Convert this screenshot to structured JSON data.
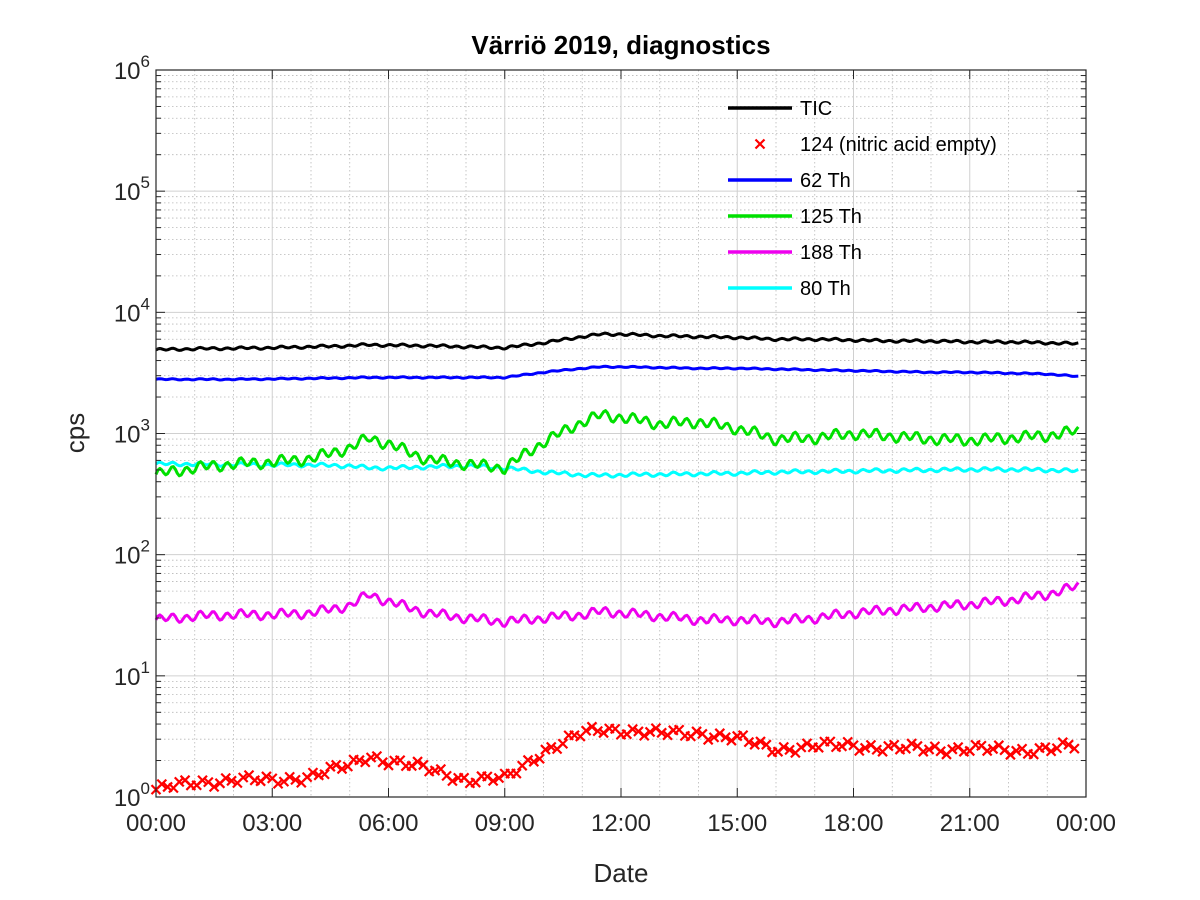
{
  "chart_data": {
    "type": "line",
    "title": "Värriö 2019, diagnostics",
    "xlabel": "Date",
    "ylabel": "cps",
    "yscale": "log",
    "ylim": [
      1,
      1000000
    ],
    "xlim": [
      "00:00",
      "00:00 (next day)"
    ],
    "x_tick_labels": [
      "00:00",
      "03:00",
      "06:00",
      "09:00",
      "12:00",
      "15:00",
      "18:00",
      "21:00",
      "00:00"
    ],
    "y_tick_labels": [
      {
        "base": "10",
        "exp": "0"
      },
      {
        "base": "10",
        "exp": "1"
      },
      {
        "base": "10",
        "exp": "2"
      },
      {
        "base": "10",
        "exp": "3"
      },
      {
        "base": "10",
        "exp": "4"
      },
      {
        "base": "10",
        "exp": "5"
      },
      {
        "base": "10",
        "exp": "6"
      }
    ],
    "grid": true,
    "minor_grid": true,
    "legend_position": "top-right",
    "x_hours": [
      0,
      1,
      2,
      3,
      4,
      5,
      5.5,
      6,
      7,
      8,
      9,
      10,
      11,
      11.5,
      12,
      13,
      14,
      15,
      16,
      17,
      18,
      19,
      20,
      21,
      22,
      23,
      23.8
    ],
    "series": [
      {
        "name": "TIC",
        "color": "#000000",
        "marker": "line",
        "values": [
          4900,
          5000,
          5050,
          5100,
          5200,
          5300,
          5400,
          5350,
          5300,
          5200,
          5100,
          5600,
          6300,
          6600,
          6600,
          6400,
          6300,
          6200,
          6000,
          6000,
          5900,
          5800,
          5800,
          5700,
          5700,
          5600,
          5500
        ]
      },
      {
        "name": "124 (nitric acid empty)",
        "color": "#ff0000",
        "marker": "x",
        "values": [
          1.15,
          1.3,
          1.4,
          1.35,
          1.5,
          1.8,
          2.2,
          2.0,
          1.7,
          1.4,
          1.4,
          2.4,
          3.3,
          3.6,
          3.6,
          3.3,
          3.4,
          3.0,
          2.5,
          2.6,
          2.7,
          2.5,
          2.5,
          2.5,
          2.4,
          2.5,
          2.6
        ]
      },
      {
        "name": "62 Th",
        "color": "#0000ff",
        "marker": "line",
        "values": [
          2800,
          2800,
          2800,
          2820,
          2850,
          2880,
          2900,
          2900,
          2900,
          2900,
          2900,
          3200,
          3450,
          3550,
          3550,
          3500,
          3450,
          3450,
          3400,
          3350,
          3300,
          3250,
          3200,
          3200,
          3150,
          3100,
          2950
        ]
      },
      {
        "name": "125 Th",
        "color": "#00e000",
        "marker": "line",
        "values": [
          460,
          520,
          560,
          580,
          620,
          760,
          920,
          820,
          610,
          560,
          520,
          850,
          1250,
          1420,
          1360,
          1200,
          1250,
          1100,
          900,
          920,
          1000,
          950,
          900,
          880,
          920,
          960,
          1050
        ]
      },
      {
        "name": "188 Th",
        "color": "#ee00ee",
        "marker": "line",
        "values": [
          29,
          31,
          32,
          32,
          33,
          38,
          47,
          41,
          33,
          30,
          28,
          30,
          32,
          34,
          33,
          31,
          29,
          29,
          28,
          30,
          33,
          35,
          37,
          39,
          42,
          47,
          55
        ]
      },
      {
        "name": "80 Th",
        "color": "#00ffff",
        "marker": "line",
        "values": [
          560,
          560,
          555,
          550,
          550,
          540,
          520,
          520,
          530,
          540,
          520,
          480,
          455,
          450,
          455,
          460,
          465,
          470,
          480,
          485,
          490,
          495,
          500,
          505,
          505,
          500,
          490
        ]
      }
    ]
  }
}
